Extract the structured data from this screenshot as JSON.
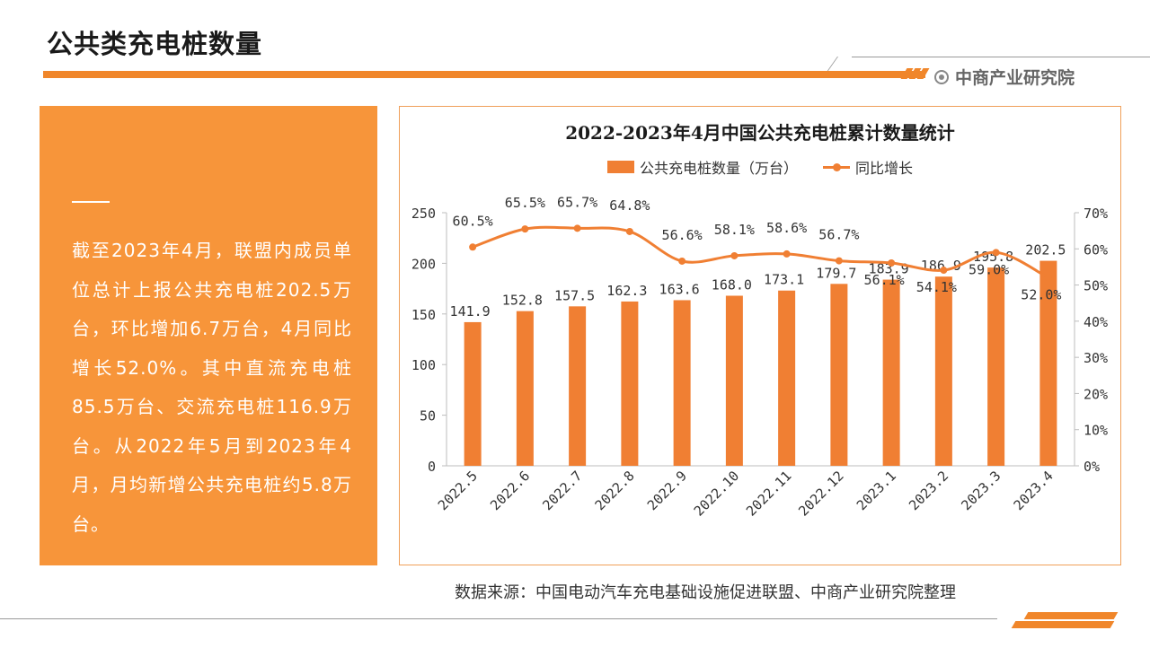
{
  "page": {
    "title": "公共类充电桩数量",
    "brand": "中商产业研究院"
  },
  "side": {
    "text": "截至2023年4月，联盟内成员单位总计上报公共充电桩202.5万台，环比增加6.7万台，4月同比增长52.0%。其中直流充电桩85.5万台、交流充电桩116.9万台。从2022年5月到2023年4月，月均新增公共充电桩约5.8万台。"
  },
  "source": "数据来源：中国电动汽车充电基础设施促进联盟、中商产业研究院整理",
  "colors": {
    "accent": "#f0862a",
    "bar": "#f07f33",
    "line": "#f07f33",
    "panel": "#f7953a"
  },
  "chart_data": {
    "type": "bar",
    "title": "2022-2023年4月中国公共充电桩累计数量统计",
    "categories": [
      "2022.5",
      "2022.6",
      "2022.7",
      "2022.8",
      "2022.9",
      "2022.10",
      "2022.11",
      "2022.12",
      "2023.1",
      "2023.2",
      "2023.3",
      "2023.4"
    ],
    "series": [
      {
        "name": "公共充电桩数量（万台）",
        "type": "bar",
        "axis": "left",
        "values": [
          141.9,
          152.8,
          157.5,
          162.3,
          163.6,
          168.0,
          173.1,
          179.7,
          183.9,
          186.9,
          195.8,
          202.5
        ],
        "labels": [
          "141.9",
          "152.8",
          "157.5",
          "162.3",
          "163.6",
          "168.0",
          "173.1",
          "179.7",
          "183.9",
          "186.9",
          "195.8",
          "202.5"
        ]
      },
      {
        "name": "同比增长",
        "type": "line",
        "axis": "right",
        "values": [
          60.5,
          65.5,
          65.7,
          64.8,
          56.6,
          58.1,
          58.6,
          56.7,
          56.1,
          54.1,
          59.0,
          52.0
        ],
        "labels": [
          "60.5%",
          "65.5%",
          "65.7%",
          "64.8%",
          "56.6%",
          "58.1%",
          "58.6%",
          "56.7%",
          "56.1%",
          "54.1%",
          "59.0%",
          "52.0%"
        ]
      }
    ],
    "y_left": {
      "min": 0,
      "max": 250,
      "ticks": [
        "0",
        "50",
        "100",
        "150",
        "200",
        "250"
      ]
    },
    "y_right": {
      "min": 0,
      "max": 70,
      "ticks": [
        "0%",
        "10%",
        "20%",
        "30%",
        "40%",
        "50%",
        "60%",
        "70%"
      ]
    },
    "grid": false,
    "legend": "top"
  }
}
